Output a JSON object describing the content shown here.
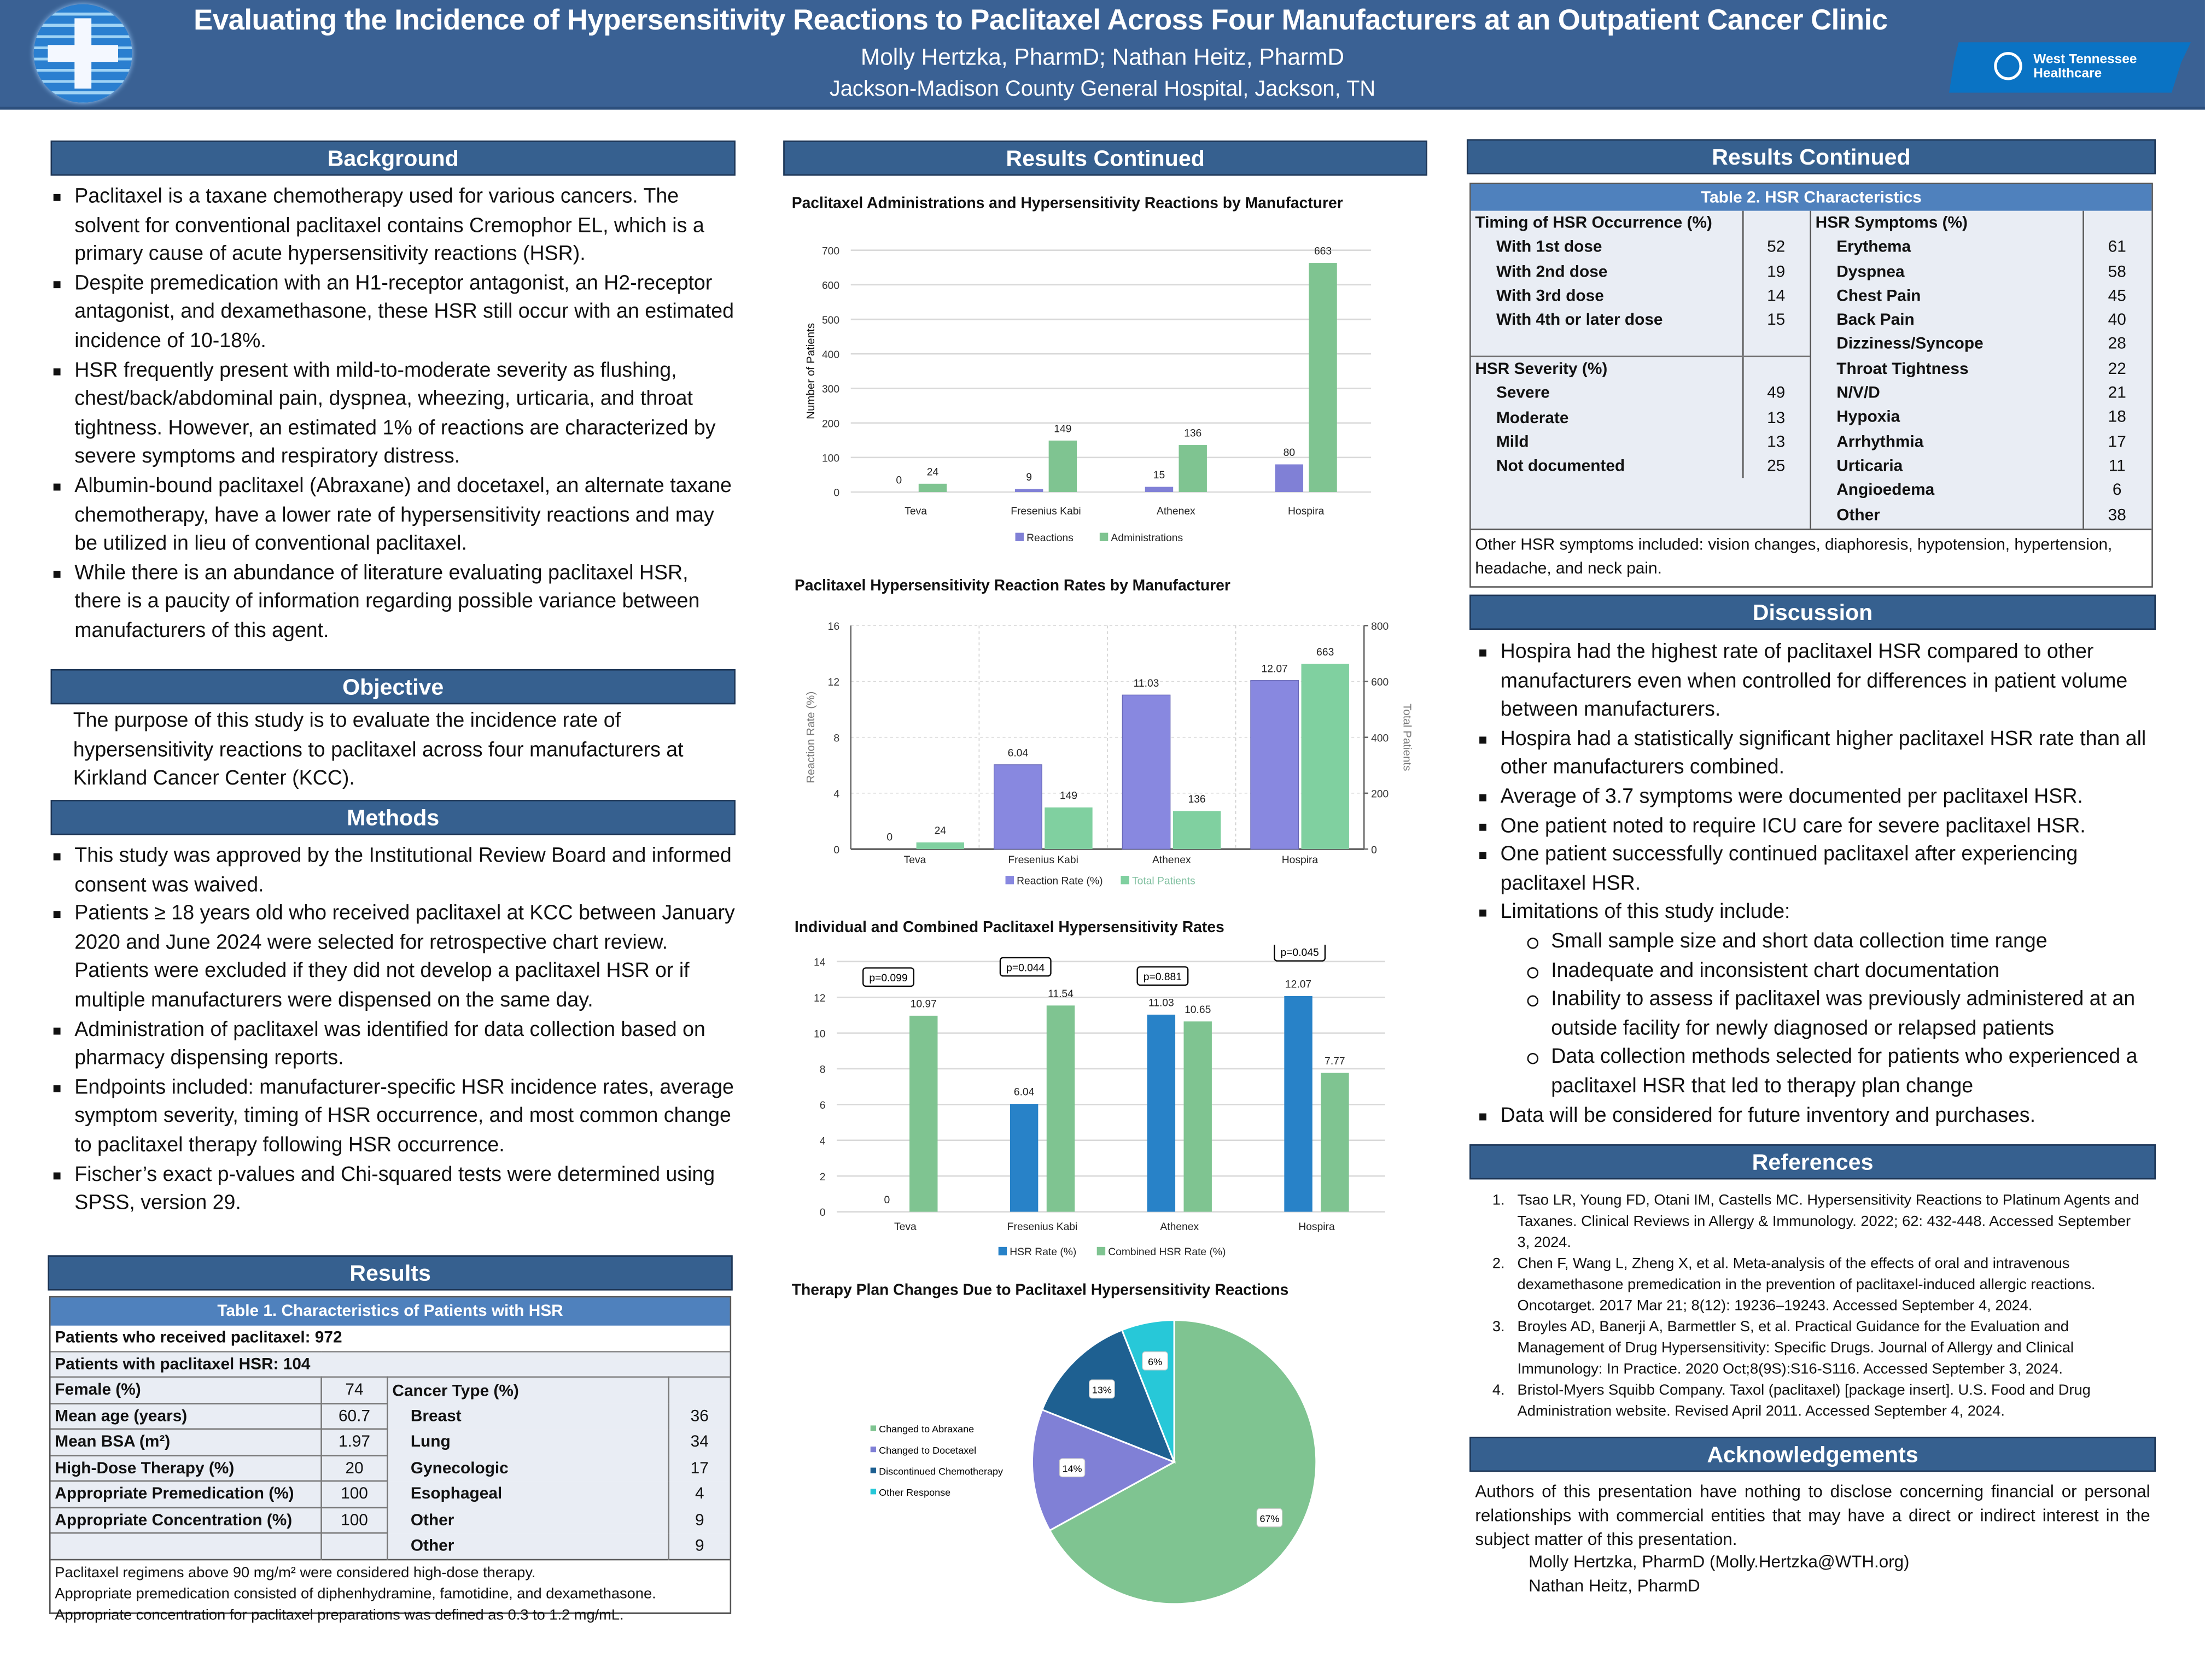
{
  "header": {
    "title": "Evaluating the Incidence of Hypersensitivity Reactions to Paclitaxel Across Four Manufacturers at an Outpatient Cancer Clinic",
    "authors": "Molly Hertzka, PharmD; Nathan Heitz, PharmD",
    "affiliation": "Jackson-Madison County General Hospital, Jackson, TN",
    "logo_right_text": "West Tennessee Healthcare",
    "logo_left": "medical-cross-logo"
  },
  "background": {
    "heading": "Background",
    "bullets": [
      "Paclitaxel is a taxane chemotherapy used for various cancers. The solvent for conventional paclitaxel contains Cremophor EL, which is a primary cause of acute hypersensitivity reactions (HSR).",
      "Despite premedication with an H1-receptor antagonist, an H2-receptor antagonist, and dexamethasone, these HSR still occur with an estimated incidence of 10-18%.",
      "HSR frequently present with mild-to-moderate severity as flushing, chest/back/abdominal pain, dyspnea, wheezing, urticaria, and throat tightness. However, an estimated 1% of reactions are characterized by severe symptoms and respiratory distress.",
      "Albumin-bound paclitaxel (Abraxane) and docetaxel, an alternate taxane chemotherapy, have a lower rate of hypersensitivity reactions and may be utilized in lieu of conventional paclitaxel.",
      "While there is an abundance of literature evaluating paclitaxel HSR, there is a paucity of information regarding possible variance between manufacturers of this agent."
    ]
  },
  "objective": {
    "heading": "Objective",
    "text": "The purpose of this study is to evaluate the incidence rate of hypersensitivity reactions to paclitaxel across four manufacturers at Kirkland Cancer Center (KCC)."
  },
  "methods": {
    "heading": "Methods",
    "bullets": [
      "This study was approved by the Institutional Review Board and informed consent was waived.",
      "Patients ≥ 18 years old who received paclitaxel at KCC between January 2020 and June 2024 were selected for retrospective chart review. Patients were excluded if they did not develop a paclitaxel HSR or if multiple manufacturers were dispensed on the same day.",
      "Administration of paclitaxel was identified for data collection based on pharmacy dispensing reports.",
      "Endpoints included: manufacturer-specific HSR incidence rates, average symptom severity, timing of HSR occurrence, and most common change to paclitaxel therapy following HSR occurrence.",
      "Fischer’s exact p-values and Chi-squared tests were determined using SPSS, version 29."
    ]
  },
  "results": {
    "heading": "Results",
    "table1": {
      "caption": "Table 1. Characteristics of Patients with HSR",
      "received": "Patients who received paclitaxel: 972",
      "with_hsr": "Patients with paclitaxel HSR: 104",
      "rows": [
        {
          "label": "Female (%)",
          "value": "74"
        },
        {
          "label": "Mean age (years)",
          "value": "60.7"
        },
        {
          "label": "Mean BSA (m²)",
          "value": "1.97"
        },
        {
          "label": "High-Dose Therapy (%)",
          "value": "20"
        },
        {
          "label": "Appropriate Premedication (%)",
          "value": "100"
        },
        {
          "label": "Appropriate Concentration (%)",
          "value": "100"
        }
      ],
      "cancer_heading": "Cancer Type (%)",
      "cancer": [
        {
          "label": "Breast",
          "value": "36"
        },
        {
          "label": "Lung",
          "value": "34"
        },
        {
          "label": "Gynecologic",
          "value": "17"
        },
        {
          "label": "Esophageal",
          "value": "4"
        },
        {
          "label": "Other",
          "value": "9"
        }
      ],
      "notes": [
        "Paclitaxel regimens above 90 mg/m² were considered high-dose therapy.",
        "Appropriate premedication consisted of diphenhydramine, famotidine, and dexamethasone.",
        "Appropriate concentration for paclitaxel preparations was defined as 0.3 to 1.2 mg/mL."
      ]
    }
  },
  "results_continued": {
    "heading": "Results Continued"
  },
  "results_continued_2": {
    "heading": "Results Continued",
    "table2": {
      "caption": "Table 2. HSR Characteristics",
      "timing_heading": "Timing of HSR Occurrence (%)",
      "timing": [
        {
          "label": "With 1st dose",
          "value": "52"
        },
        {
          "label": "With 2nd dose",
          "value": "19"
        },
        {
          "label": "With 3rd dose",
          "value": "14"
        },
        {
          "label": "With 4th or later dose",
          "value": "15"
        }
      ],
      "severity_heading": "HSR Severity (%)",
      "severity": [
        {
          "label": "Severe",
          "value": "49"
        },
        {
          "label": "Moderate",
          "value": "13"
        },
        {
          "label": "Mild",
          "value": "13"
        },
        {
          "label": "Not documented",
          "value": "25"
        }
      ],
      "symptoms_heading": "HSR Symptoms (%)",
      "symptoms": [
        {
          "label": "Erythema",
          "value": "61"
        },
        {
          "label": "Dyspnea",
          "value": "58"
        },
        {
          "label": "Chest Pain",
          "value": "45"
        },
        {
          "label": "Back Pain",
          "value": "40"
        },
        {
          "label": "Dizziness/Syncope",
          "value": "28"
        },
        {
          "label": "Throat Tightness",
          "value": "22"
        },
        {
          "label": "N/V/D",
          "value": "21"
        },
        {
          "label": "Hypoxia",
          "value": "18"
        },
        {
          "label": "Arrhythmia",
          "value": "17"
        },
        {
          "label": "Urticaria",
          "value": "11"
        },
        {
          "label": "Angioedema",
          "value": "6"
        },
        {
          "label": "Other",
          "value": "38"
        }
      ],
      "note": "Other HSR symptoms included: vision changes, diaphoresis, hypotension, hypertension, headache, and neck pain."
    }
  },
  "discussion": {
    "heading": "Discussion",
    "bullets": [
      {
        "text": "Hospira had the highest rate of paclitaxel HSR compared to other manufacturers even when controlled for differences in patient volume between manufacturers."
      },
      {
        "text": "Hospira had a statistically significant higher paclitaxel HSR rate than all other manufacturers combined."
      },
      {
        "text": "Average of 3.7 symptoms were documented per paclitaxel HSR."
      },
      {
        "text": "One patient noted to require ICU care for severe paclitaxel HSR."
      },
      {
        "text": "One patient successfully continued paclitaxel after experiencing paclitaxel HSR."
      },
      {
        "text": "Limitations of this study include:",
        "sub": [
          "Small sample size and short data collection time range",
          "Inadequate and inconsistent chart documentation",
          "Inability to assess if paclitaxel was previously administered at an outside facility for newly diagnosed or relapsed patients",
          "Data collection methods selected for patients who experienced a paclitaxel HSR that led to therapy plan change"
        ]
      },
      {
        "text": "Data will be considered for future inventory and purchases."
      }
    ]
  },
  "references": {
    "heading": "References",
    "items": [
      "Tsao LR, Young FD, Otani IM, Castells MC. Hypersensitivity Reactions to Platinum Agents and Taxanes. Clinical Reviews in Allergy & Immunology. 2022; 62: 432-448. Accessed September 3, 2024.",
      "Chen F, Wang L, Zheng X, et al. Meta-analysis of the effects of oral and intravenous dexamethasone premedication in the prevention of paclitaxel-induced allergic reactions. Oncotarget. 2017 Mar 21; 8(12): 19236–19243. Accessed September 4, 2024.",
      "Broyles AD, Banerji A, Barmettler S, et al. Practical Guidance for the Evaluation and Management of Drug Hypersensitivity: Specific Drugs. Journal of Allergy and Clinical Immunology: In Practice. 2020 Oct;8(9S):S16-S116. Accessed September 3, 2024.",
      "Bristol-Myers Squibb Company. Taxol (paclitaxel) [package insert]. U.S. Food and Drug Administration website. Revised April 2011. Accessed September 4, 2024."
    ]
  },
  "acknowledgements": {
    "heading": "Acknowledgements",
    "text": "Authors of this presentation have nothing to disclose concerning financial or personal relationships with commercial entities that may have a direct or indirect interest in the subject matter of this presentation.",
    "contact1": "Molly Hertzka, PharmD (Molly.Hertzka@WTH.org)",
    "contact2": "Nathan Heitz, PharmD"
  },
  "colors": {
    "header": "#3a6194",
    "section": "#36608f",
    "table_caption": "#4f81bd",
    "reactions": "#8080d6",
    "administrations": "#7fc491",
    "hsr_rate": "#2882c8",
    "discontinued": "#1e6091",
    "other": "#27c8d8"
  },
  "chart_data": [
    {
      "type": "bar",
      "title": "Paclitaxel Administrations and Hypersensitivity Reactions by Manufacturer",
      "xlabel": "",
      "ylabel": "Number of Patients",
      "ylim": [
        0,
        700
      ],
      "yticks": [
        0,
        100,
        200,
        300,
        400,
        500,
        600,
        700
      ],
      "grid": true,
      "legend": "bottom",
      "categories": [
        "Teva",
        "Fresenius Kabi",
        "Athenex",
        "Hospira"
      ],
      "series": [
        {
          "name": "Reactions",
          "values": [
            0,
            9,
            15,
            80
          ],
          "color": "#8080d6"
        },
        {
          "name": "Administrations",
          "values": [
            24,
            149,
            136,
            663
          ],
          "color": "#7fc491"
        }
      ]
    },
    {
      "type": "bar",
      "title": "Paclitaxel Hypersensitivity Reaction Rates by Manufacturer",
      "ylabel": "Reaction Rate (%)",
      "y2label": "Total Patients",
      "ylim": [
        0,
        16
      ],
      "y2lim": [
        0,
        800
      ],
      "yticks": [
        0,
        4,
        8,
        12,
        16
      ],
      "y2ticks": [
        0,
        200,
        400,
        600,
        800
      ],
      "grid": true,
      "legend": "bottom",
      "categories": [
        "Teva",
        "Fresenius Kabi",
        "Athenex",
        "Hospira"
      ],
      "series": [
        {
          "name": "Reaction Rate (%)",
          "axis": "left",
          "values": [
            0,
            6.04,
            11.03,
            12.07
          ],
          "labels": [
            "0",
            "6.04",
            "11.03",
            "12.07"
          ],
          "color": "#8888e0"
        },
        {
          "name": "Total Patients",
          "axis": "right",
          "values": [
            24,
            149,
            136,
            663
          ],
          "color": "#80d0a0"
        }
      ]
    },
    {
      "type": "bar",
      "title": "Individual and Combined Paclitaxel Hypersensitivity Rates",
      "ylim": [
        0,
        14
      ],
      "yticks": [
        0,
        2,
        4,
        6,
        8,
        10,
        12,
        14
      ],
      "grid": true,
      "legend": "bottom",
      "categories": [
        "Teva",
        "Fresenius Kabi",
        "Athenex",
        "Hospira"
      ],
      "series": [
        {
          "name": "HSR Rate (%)",
          "values": [
            0,
            6.04,
            11.03,
            12.07
          ],
          "labels": [
            "0",
            "6.04",
            "11.03",
            "12.07"
          ],
          "color": "#2882c8"
        },
        {
          "name": "Combined HSR Rate (%)",
          "values": [
            10.97,
            11.54,
            10.65,
            7.77
          ],
          "labels": [
            "10.97",
            "11.54",
            "10.65",
            "7.77"
          ],
          "color": "#7fc491"
        }
      ],
      "annotations": [
        "p=0.099",
        "p=0.044",
        "p=0.881",
        "p=0.045"
      ]
    },
    {
      "type": "pie",
      "title": "Therapy Plan Changes Due to Paclitaxel Hypersensitivity Reactions",
      "legend": "left",
      "slices": [
        {
          "label": "Changed to Abraxane",
          "value": 67,
          "text": "67%",
          "color": "#7fc491"
        },
        {
          "label": "Changed to Docetaxel",
          "value": 14,
          "text": "14%",
          "color": "#8080d6"
        },
        {
          "label": "Discontinued Chemotherapy",
          "value": 13,
          "text": "13%",
          "color": "#1e6091"
        },
        {
          "label": "Other Response",
          "value": 6,
          "text": "6%",
          "color": "#27c8d8"
        }
      ]
    }
  ]
}
